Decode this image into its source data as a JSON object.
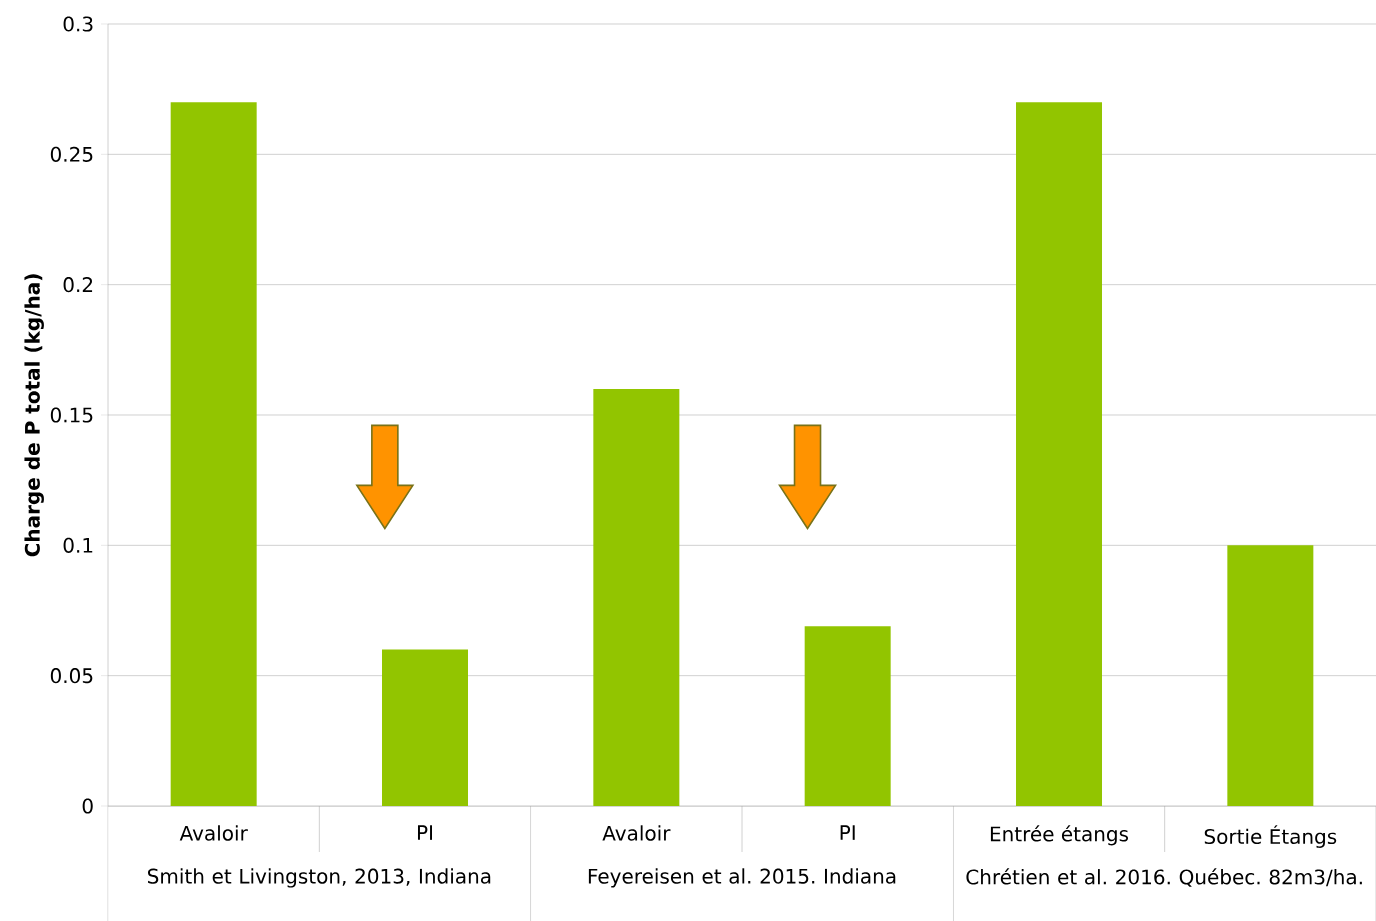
{
  "chart_data": {
    "type": "bar",
    "ylabel": "Charge de P total (kg/ha)",
    "categories": [
      "Avaloir",
      "PI",
      "Avaloir",
      "PI",
      "Entrée étangs",
      "Sortie Étangs"
    ],
    "values": [
      0.27,
      0.06,
      0.16,
      0.069,
      0.27,
      0.1
    ],
    "color": "#92c500",
    "ylim": [
      0,
      0.3
    ],
    "yticks": [
      0,
      0.05,
      0.1,
      0.15,
      0.2,
      0.25,
      0.3
    ],
    "grid": "y",
    "annotations": [
      "Smith et Livingston, 2013, Indiana",
      "Feyereisen et al. 2015. Indiana",
      "Chrétien et al. 2016. Québec. 82m3/ha."
    ]
  }
}
